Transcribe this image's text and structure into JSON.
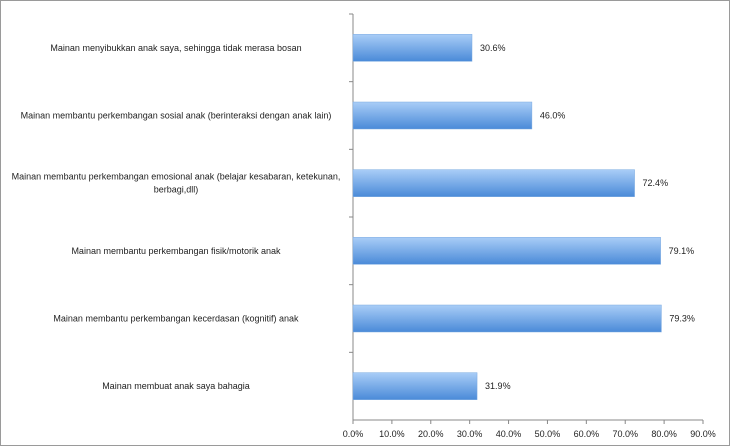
{
  "chart_data": {
    "type": "bar",
    "orientation": "horizontal",
    "categories": [
      "Mainan menyibukkan anak saya, sehingga tidak merasa bosan",
      "Mainan membantu perkembangan sosial anak (berinteraksi dengan anak lain)",
      "Mainan membantu perkembangan emosional anak (belajar kesabaran, ketekunan, berbagi,dll)",
      "Mainan membantu perkembangan fisik/motorik anak",
      "Mainan membantu perkembangan kecerdasan (kognitif) anak",
      "Mainan membuat anak saya bahagia"
    ],
    "values": [
      30.6,
      46.0,
      72.4,
      79.1,
      79.3,
      31.9
    ],
    "data_labels": [
      "30.6%",
      "46.0%",
      "72.4%",
      "79.1%",
      "79.3%",
      "31.9%"
    ],
    "xlim": [
      0,
      90
    ],
    "x_ticks": [
      "0.0%",
      "10.0%",
      "20.0%",
      "30.0%",
      "40.0%",
      "50.0%",
      "60.0%",
      "70.0%",
      "80.0%",
      "90.0%"
    ],
    "grid": false,
    "legend": "none",
    "bar_color_top": "#a9cdf7",
    "bar_color_bottom": "#4a8ad8",
    "title": "",
    "xlabel": "",
    "ylabel": ""
  }
}
